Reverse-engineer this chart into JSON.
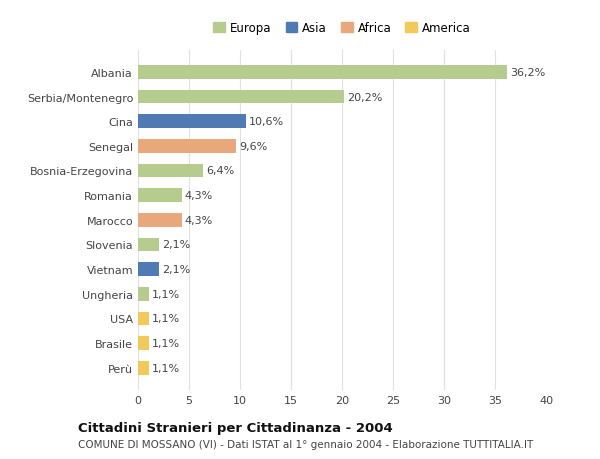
{
  "categories": [
    "Perù",
    "Brasile",
    "USA",
    "Ungheria",
    "Vietnam",
    "Slovenia",
    "Marocco",
    "Romania",
    "Bosnia-Erzegovina",
    "Senegal",
    "Cina",
    "Serbia/Montenegro",
    "Albania"
  ],
  "values": [
    1.1,
    1.1,
    1.1,
    1.1,
    2.1,
    2.1,
    4.3,
    4.3,
    6.4,
    9.6,
    10.6,
    20.2,
    36.2
  ],
  "labels": [
    "1,1%",
    "1,1%",
    "1,1%",
    "1,1%",
    "2,1%",
    "2,1%",
    "4,3%",
    "4,3%",
    "6,4%",
    "9,6%",
    "10,6%",
    "20,2%",
    "36,2%"
  ],
  "colors": [
    "#f2ca5c",
    "#f2ca5c",
    "#f2ca5c",
    "#b5cc8e",
    "#4f7ab3",
    "#b5cc8e",
    "#e8a87c",
    "#b5cc8e",
    "#b5cc8e",
    "#e8a87c",
    "#4f7ab3",
    "#b5cc8e",
    "#b5cc8e"
  ],
  "legend": [
    {
      "label": "Europa",
      "color": "#b5cc8e"
    },
    {
      "label": "Asia",
      "color": "#4f7ab3"
    },
    {
      "label": "Africa",
      "color": "#e8a87c"
    },
    {
      "label": "America",
      "color": "#f2ca5c"
    }
  ],
  "xlim": [
    0,
    40
  ],
  "xticks": [
    0,
    5,
    10,
    15,
    20,
    25,
    30,
    35,
    40
  ],
  "title": "Cittadini Stranieri per Cittadinanza - 2004",
  "subtitle": "COMUNE DI MOSSANO (VI) - Dati ISTAT al 1° gennaio 2004 - Elaborazione TUTTITALIA.IT",
  "bar_height": 0.55,
  "background_color": "#ffffff",
  "grid_color": "#e0e0e0",
  "label_fontsize": 8,
  "tick_fontsize": 8,
  "title_fontsize": 9.5,
  "subtitle_fontsize": 7.5
}
